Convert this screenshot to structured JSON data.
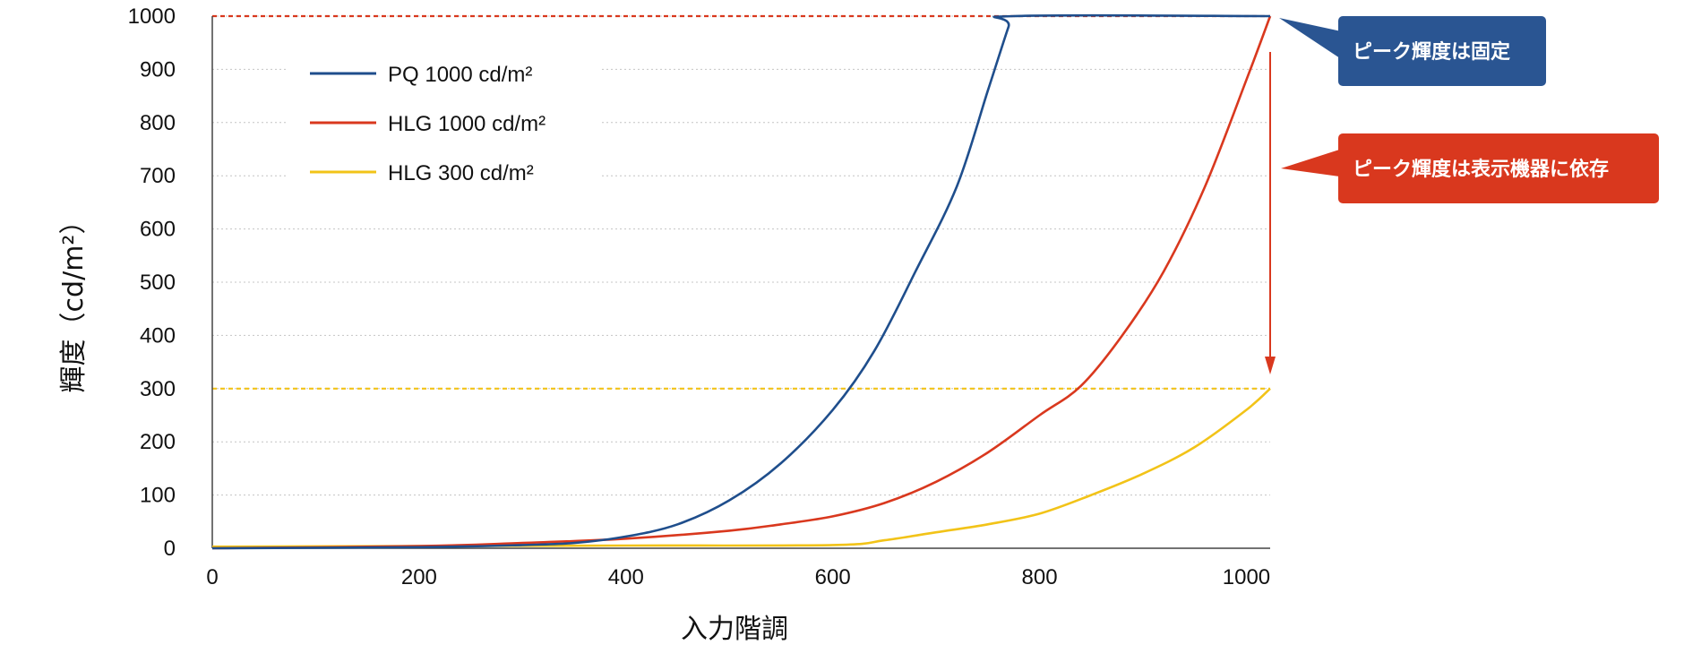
{
  "chart_data": {
    "type": "line",
    "xlabel": "入力階調",
    "ylabel": "輝度（cd/m²）",
    "xlim": [
      0,
      1023
    ],
    "ylim": [
      0,
      1000
    ],
    "x_ticks": [
      0,
      200,
      400,
      600,
      800,
      1000
    ],
    "y_ticks": [
      0,
      100,
      200,
      300,
      400,
      500,
      600,
      700,
      800,
      900,
      1000
    ],
    "grid": "horizontal dotted",
    "legend_position": "top-left",
    "series": [
      {
        "name": "PQ 1000 cd/m²",
        "color": "#1f4e8c",
        "points": [
          [
            0,
            0
          ],
          [
            200,
            2
          ],
          [
            300,
            6
          ],
          [
            350,
            10
          ],
          [
            400,
            22
          ],
          [
            450,
            45
          ],
          [
            500,
            90
          ],
          [
            550,
            160
          ],
          [
            600,
            260
          ],
          [
            640,
            370
          ],
          [
            680,
            520
          ],
          [
            720,
            680
          ],
          [
            750,
            860
          ],
          [
            770,
            980
          ],
          [
            775,
            1000
          ],
          [
            1023,
            1000
          ]
        ]
      },
      {
        "name": "HLG 1000 cd/m²",
        "color": "#d9381e",
        "points": [
          [
            0,
            0
          ],
          [
            200,
            4
          ],
          [
            300,
            10
          ],
          [
            400,
            18
          ],
          [
            500,
            33
          ],
          [
            550,
            45
          ],
          [
            600,
            60
          ],
          [
            650,
            85
          ],
          [
            700,
            125
          ],
          [
            750,
            180
          ],
          [
            800,
            250
          ],
          [
            840,
            305
          ],
          [
            880,
            400
          ],
          [
            920,
            520
          ],
          [
            960,
            680
          ],
          [
            1000,
            880
          ],
          [
            1023,
            1000
          ]
        ]
      },
      {
        "name": "HLG 300 cd/m²",
        "color": "#f2c318",
        "points": [
          [
            0,
            3
          ],
          [
            200,
            4
          ],
          [
            400,
            5
          ],
          [
            600,
            6
          ],
          [
            650,
            15
          ],
          [
            700,
            30
          ],
          [
            750,
            45
          ],
          [
            800,
            65
          ],
          [
            850,
            100
          ],
          [
            900,
            140
          ],
          [
            950,
            190
          ],
          [
            1000,
            260
          ],
          [
            1023,
            300
          ]
        ]
      }
    ],
    "reference_lines": [
      {
        "y": 1000,
        "color": "#d9381e",
        "style": "dotted"
      },
      {
        "y": 300,
        "color": "#f2c318",
        "style": "dotted"
      }
    ],
    "annotations": [
      {
        "text": "ピーク輝度は固定",
        "color": "#2a5592"
      },
      {
        "text": "ピーク輝度は表示機器に依存",
        "color": "#d9381e"
      }
    ]
  }
}
